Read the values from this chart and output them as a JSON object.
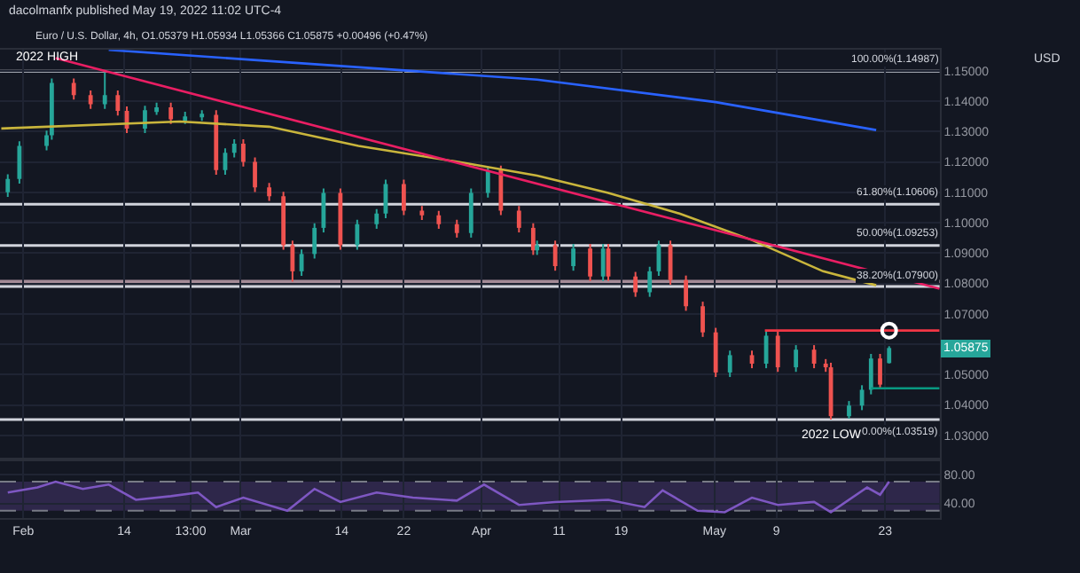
{
  "chart_data": [
    {
      "type": "candlestick",
      "title": "dacolmanfx published May 19, 2022 11:02 UTC-4",
      "subtitle": "Euro / U.S. Dollar, 4h, O1.05379 H1.05934 L1.05366 C1.05875 +0.00496 (+0.47%)",
      "ylabel": "USD",
      "x": [
        "2022-01-30",
        "2022-01-31T12:00",
        "2022-02-04",
        "2022-02-04T16:00",
        "2022-02-07T12:00",
        "2022-02-09T16:00",
        "2022-02-11T12:00",
        "2022-02-13T04:00",
        "2022-02-14T08:00",
        "2022-02-16T16:00",
        "2022-02-18T04:00",
        "2022-02-20",
        "2022-02-21T20:00",
        "2022-02-24",
        "2022-02-25T20:00",
        "2022-02-27",
        "2022-02-28T04:00",
        "2022-03-01T08:00",
        "2022-03-02T20:00",
        "2022-03-04T16:00",
        "2022-03-06T12:00",
        "2022-03-07T16:00",
        "2022-03-08T20:00",
        "2022-03-10T12:00",
        "2022-03-11T16:00",
        "2022-03-13T20:00",
        "2022-03-16",
        "2022-03-18T12:00",
        "2022-03-19T16:00",
        "2022-03-22",
        "2022-03-24T08:00",
        "2022-03-26T12:00",
        "2022-03-28T20:00",
        "2022-03-30T16:00",
        "2022-04-01T20:00",
        "2022-04-03T12:00",
        "2022-04-05T20:00",
        "2022-04-07T16:00",
        "2022-04-08T04:00",
        "2022-04-10T12:00",
        "2022-04-12T20:00",
        "2022-04-15",
        "2022-04-16T16:00",
        "2022-04-17T08:00",
        "2022-04-20T20:00",
        "2022-04-22T16:00",
        "2022-04-23T20:00",
        "2022-04-25T08:00",
        "2022-04-27T08:00",
        "2022-04-29T12:00",
        "2022-05-01T04:00",
        "2022-05-03",
        "2022-05-05T20:00",
        "2022-05-07T16:00",
        "2022-05-09T04:00",
        "2022-05-11T12:00",
        "2022-05-13T20:00",
        "2022-05-15T08:00",
        "2022-05-16",
        "2022-05-18T08:00",
        "2022-05-20",
        "2022-05-21T04:00",
        "2022-05-22T08:00",
        "2022-05-23T12:00"
      ],
      "ohlc": [
        [
          1.11,
          1.1159,
          1.1085,
          1.1144
        ],
        [
          1.1144,
          1.1268,
          1.1129,
          1.1253
        ],
        [
          1.1253,
          1.1303,
          1.1238,
          1.1288
        ],
        [
          1.1288,
          1.1475,
          1.1273,
          1.146
        ],
        [
          1.146,
          1.1475,
          1.1405,
          1.142
        ],
        [
          1.142,
          1.1435,
          1.1375,
          1.139
        ],
        [
          1.139,
          1.1495,
          1.1375,
          1.142
        ],
        [
          1.142,
          1.1435,
          1.1353,
          1.1368
        ],
        [
          1.1368,
          1.1383,
          1.1295,
          1.131
        ],
        [
          1.131,
          1.1385,
          1.1295,
          1.137
        ],
        [
          1.137,
          1.1395,
          1.1355,
          1.138
        ],
        [
          1.138,
          1.1395,
          1.1325,
          1.134
        ],
        [
          1.134,
          1.1365,
          1.1325,
          1.135
        ],
        [
          1.135,
          1.137,
          1.1335,
          1.1355
        ],
        [
          1.1355,
          1.137,
          1.1158,
          1.1173
        ],
        [
          1.1173,
          1.1245,
          1.1158,
          1.123
        ],
        [
          1.123,
          1.1275,
          1.1215,
          1.126
        ],
        [
          1.126,
          1.1275,
          1.1185,
          1.12
        ],
        [
          1.12,
          1.1215,
          1.1101,
          1.1116
        ],
        [
          1.1116,
          1.1131,
          1.1072,
          1.1087
        ],
        [
          1.1087,
          1.1102,
          1.0911,
          1.0926
        ],
        [
          1.0926,
          1.0941,
          1.0806,
          1.084
        ],
        [
          1.084,
          1.0912,
          1.0825,
          1.0897
        ],
        [
          1.0897,
          1.0998,
          1.0882,
          1.0983
        ],
        [
          1.0983,
          1.1113,
          1.0968,
          1.1098
        ],
        [
          1.1098,
          1.1113,
          1.0911,
          1.0926
        ],
        [
          1.0926,
          1.101,
          1.0911,
          1.0995
        ],
        [
          1.0995,
          1.1045,
          1.098,
          1.103
        ],
        [
          1.103,
          1.1142,
          1.1015,
          1.1127
        ],
        [
          1.1127,
          1.1142,
          1.1025,
          1.104
        ],
        [
          1.104,
          1.1055,
          1.1009,
          1.1024
        ],
        [
          1.1024,
          1.1039,
          1.098,
          1.0995
        ],
        [
          1.0995,
          1.101,
          1.0951,
          1.0966
        ],
        [
          1.0966,
          1.1113,
          1.0951,
          1.1098
        ],
        [
          1.1098,
          1.1185,
          1.1083,
          1.1173
        ],
        [
          1.1173,
          1.1188,
          1.1025,
          1.104
        ],
        [
          1.104,
          1.1055,
          1.0968,
          1.0983
        ],
        [
          1.0983,
          1.0998,
          1.0894,
          1.0909
        ],
        [
          1.0909,
          1.0941,
          1.0894,
          1.0926
        ],
        [
          1.0926,
          1.0941,
          1.0842,
          1.0857
        ],
        [
          1.0857,
          1.093,
          1.0842,
          1.0915
        ],
        [
          1.0915,
          1.093,
          1.0808,
          1.0823
        ],
        [
          1.0823,
          1.093,
          1.0808,
          1.0915
        ],
        [
          1.0915,
          1.093,
          1.0808,
          1.0823
        ],
        [
          1.0823,
          1.0838,
          1.0756,
          1.0771
        ],
        [
          1.0771,
          1.0855,
          1.0756,
          1.084
        ],
        [
          1.084,
          1.0941,
          1.0825,
          1.0926
        ],
        [
          1.0926,
          1.0941,
          1.0796,
          1.0811
        ],
        [
          1.0811,
          1.0826,
          1.071,
          1.0725
        ],
        [
          1.0725,
          1.074,
          1.0624,
          1.0639
        ],
        [
          1.0639,
          1.0654,
          1.0492,
          1.0507
        ],
        [
          1.0507,
          1.0579,
          1.0492,
          1.0564
        ],
        [
          1.0564,
          1.0579,
          1.0521,
          1.0536
        ],
        [
          1.0536,
          1.0641,
          1.0521,
          1.0628
        ],
        [
          1.0628,
          1.0643,
          1.0509,
          1.0524
        ],
        [
          1.0524,
          1.0597,
          1.0509,
          1.0582
        ],
        [
          1.0582,
          1.0597,
          1.0521,
          1.0536
        ],
        [
          1.0536,
          1.0551,
          1.0509,
          1.0524
        ],
        [
          1.0524,
          1.0539,
          1.0352,
          1.0363
        ],
        [
          1.0363,
          1.0413,
          1.0355,
          1.0398
        ],
        [
          1.0398,
          1.0465,
          1.0383,
          1.045
        ],
        [
          1.045,
          1.0568,
          1.0435,
          1.0553
        ],
        [
          1.0553,
          1.0568,
          1.0452,
          1.0467
        ],
        [
          1.05379,
          1.05934,
          1.05366,
          1.05875
        ]
      ],
      "colors": [
        "#26a69a",
        "#26a69a",
        "#26a69a",
        "#26a69a",
        "#ef5350",
        "#ef5350",
        "#26a69a",
        "#ef5350",
        "#ef5350",
        "#26a69a",
        "#26a69a",
        "#ef5350",
        "#26a69a",
        "#26a69a",
        "#ef5350",
        "#26a69a",
        "#26a69a",
        "#ef5350",
        "#ef5350",
        "#ef5350",
        "#ef5350",
        "#ef5350",
        "#26a69a",
        "#26a69a",
        "#26a69a",
        "#ef5350",
        "#26a69a",
        "#26a69a",
        "#26a69a",
        "#ef5350",
        "#ef5350",
        "#ef5350",
        "#ef5350",
        "#26a69a",
        "#26a69a",
        "#ef5350",
        "#ef5350",
        "#ef5350",
        "#26a69a",
        "#ef5350",
        "#26a69a",
        "#ef5350",
        "#26a69a",
        "#ef5350",
        "#ef5350",
        "#26a69a",
        "#26a69a",
        "#ef5350",
        "#ef5350",
        "#ef5350",
        "#ef5350",
        "#26a69a",
        "#ef5350",
        "#26a69a",
        "#ef5350",
        "#26a69a",
        "#ef5350",
        "#ef5350",
        "#ef5350",
        "#26a69a",
        "#26a69a",
        "#26a69a",
        "#ef5350",
        "#26a69a"
      ],
      "series": [
        {
          "type": "line",
          "color": "#c9b53c",
          "x": [
            "2022-01-29T04:00",
            "2022-02-21T04:00",
            "2022-03-04T16:00",
            "2022-03-16T04:00",
            "2022-03-30",
            "2022-04-08T04:00",
            "2022-04-17T08:00",
            "2022-04-26T12:00",
            "2022-05-05T20:00",
            "2022-05-15",
            "2022-05-21T20:00"
          ],
          "values": [
            1.131,
            1.1333,
            1.1316,
            1.1253,
            1.1196,
            1.1155,
            1.1098,
            1.103,
            1.0943,
            1.084,
            1.0794
          ]
        },
        {
          "type": "line",
          "color": "#2962ff",
          "x": [
            "2022-02-12",
            "2022-04-08T04:00",
            "2022-05-01T04:00",
            "2022-05-21T20:00"
          ],
          "values": [
            1.1569,
            1.1471,
            1.1397,
            1.1305
          ]
        },
        {
          "type": "line",
          "color": "#e91e63",
          "x": [
            "2022-02-05T04:00",
            "2022-05-30"
          ],
          "values": [
            1.1542,
            1.0783
          ]
        },
        {
          "type": "line",
          "color": "#f23645",
          "x": [
            "2022-05-07T12:00",
            "2022-05-30"
          ],
          "values": [
            1.0645,
            1.0645
          ]
        },
        {
          "type": "line",
          "color": "#089981",
          "x": [
            "2022-05-21T04:00",
            "2022-05-30"
          ],
          "values": [
            1.0455,
            1.0455
          ]
        },
        {
          "type": "scatter",
          "color": "#ffffff",
          "marker": "circle",
          "x": [
            "2022-05-23T12:00"
          ],
          "values": [
            1.0645
          ]
        }
      ],
      "ref_lines": [
        {
          "axis": "y",
          "value": 1.14987,
          "label": "100.00%(1.14987)",
          "color": "#d1d4dc"
        },
        {
          "axis": "y",
          "value": 1.10606,
          "label": "61.80%(1.10606)",
          "color": "#d1d4dc"
        },
        {
          "axis": "y",
          "value": 1.09253,
          "label": "50.00%(1.09253)",
          "color": "#d1d4dc"
        },
        {
          "axis": "y",
          "value": 1.079,
          "label": "38.20%(1.07900)",
          "color": "#d1d4dc"
        },
        {
          "axis": "y",
          "value": 1.03519,
          "label": "0.00%(1.03519)",
          "color": "#d1d4dc"
        }
      ],
      "bands": [
        {
          "axis": "y",
          "from": 1.0795,
          "to": 1.0812,
          "color": "#c9a9b5"
        }
      ],
      "annotations": [
        {
          "text": "2022 HIGH",
          "x": "2022-02-04",
          "y": 1.1495
        },
        {
          "text": "2022 LOW",
          "x": "2022-05-16",
          "y": 1.0352
        },
        "1.05875"
      ],
      "xlim": [
        "2022-01-29",
        "2022-05-30"
      ],
      "xticks": [
        {
          "value": "2022-02-01",
          "label": null
        },
        {
          "value": "2022-02-14",
          "label": null
        },
        {
          "value": "2022-02-22T13:00",
          "label": null
        },
        {
          "value": "2022-03-01",
          "label": null
        },
        {
          "value": "2022-03-14",
          "label": null
        },
        {
          "value": "2022-03-22",
          "label": null
        },
        {
          "value": "2022-04-01",
          "label": null
        },
        {
          "value": "2022-04-11",
          "label": null
        },
        {
          "value": "2022-04-19",
          "label": null
        },
        {
          "value": "2022-05-01",
          "label": null
        },
        {
          "value": "2022-05-09",
          "label": null
        },
        {
          "value": "2022-05-23",
          "label": null
        }
      ],
      "ylim": [
        1.0226,
        1.1569
      ],
      "yticks": [
        {
          "value": 1.03,
          "label": "1.03000"
        },
        {
          "value": 1.04,
          "label": "1.04000"
        },
        {
          "value": 1.05,
          "label": "1.05000"
        },
        {
          "value": 1.06,
          "label": null
        },
        {
          "value": 1.07,
          "label": "1.07000"
        },
        {
          "value": 1.08,
          "label": "1.08000"
        },
        {
          "value": 1.09,
          "label": "1.09000"
        },
        {
          "value": 1.1,
          "label": "1.10000"
        },
        {
          "value": 1.11,
          "label": "1.11000"
        },
        {
          "value": 1.12,
          "label": "1.12000"
        },
        {
          "value": 1.13,
          "label": "1.13000"
        },
        {
          "value": 1.14,
          "label": "1.14000"
        },
        {
          "value": 1.15,
          "label": "1.15000"
        }
      ],
      "grid": true,
      "tick_labels": "y"
    },
    {
      "type": "line",
      "series": [
        {
          "color": "#7e57c2",
          "x": [
            "2022-01-30",
            "2022-02-02T20:00",
            "2022-02-05T04:00",
            "2022-02-08T16:00",
            "2022-02-12",
            "2022-02-15T12:00",
            "2022-02-20",
            "2022-02-23T12:00",
            "2022-02-25T20:00",
            "2022-03-01T08:00",
            "2022-03-07",
            "2022-03-10T12:00",
            "2022-03-13T20:00",
            "2022-03-18T12:00",
            "2022-03-23T04:00",
            "2022-03-28T20:00",
            "2022-04-01T08:00",
            "2022-04-05T20:00",
            "2022-04-10T12:00",
            "2022-04-17T08:00",
            "2022-04-22",
            "2022-04-24T08:00",
            "2022-04-28T20:00",
            "2022-05-02T08:00",
            "2022-05-05T20:00",
            "2022-05-09T04:00",
            "2022-05-13T20:00",
            "2022-05-16",
            "2022-05-20T16:00",
            "2022-05-22T08:00",
            "2022-05-23T12:00"
          ],
          "values": [
            55,
            62,
            70,
            60,
            66,
            45,
            50,
            55,
            35,
            48,
            30,
            60,
            42,
            55,
            48,
            44,
            66,
            38,
            42,
            45,
            35,
            58,
            30,
            28,
            48,
            38,
            42,
            28,
            62,
            52,
            70
          ]
        }
      ],
      "bands": [
        {
          "axis": "y",
          "from": 30,
          "to": 70,
          "color": "#7e57c2"
        }
      ],
      "ref_lines": [
        {
          "axis": "y",
          "value": 70,
          "line_style": "dashed",
          "color": "#787b86"
        },
        {
          "axis": "y",
          "value": 30,
          "line_style": "dashed",
          "color": "#787b86"
        }
      ],
      "xlim": [
        "2022-01-29",
        "2022-05-30"
      ],
      "xticks": [
        {
          "value": "2022-02-01",
          "label": "Feb"
        },
        {
          "value": "2022-02-14",
          "label": "14"
        },
        {
          "value": "2022-02-22T13:00",
          "label": "13:00"
        },
        {
          "value": "2022-03-01",
          "label": "Mar"
        },
        {
          "value": "2022-03-14",
          "label": "14"
        },
        {
          "value": "2022-03-22",
          "label": "22"
        },
        {
          "value": "2022-04-01",
          "label": "Apr"
        },
        {
          "value": "2022-04-11",
          "label": "11"
        },
        {
          "value": "2022-04-19",
          "label": "19"
        },
        {
          "value": "2022-05-01",
          "label": "May"
        },
        {
          "value": "2022-05-09",
          "label": "9"
        },
        {
          "value": "2022-05-23",
          "label": "23"
        }
      ],
      "ylim": [
        20,
        98
      ],
      "yticks": [
        {
          "value": 80,
          "label": "80.00"
        },
        {
          "value": 40,
          "label": "40.00"
        }
      ],
      "grid": true
    }
  ]
}
